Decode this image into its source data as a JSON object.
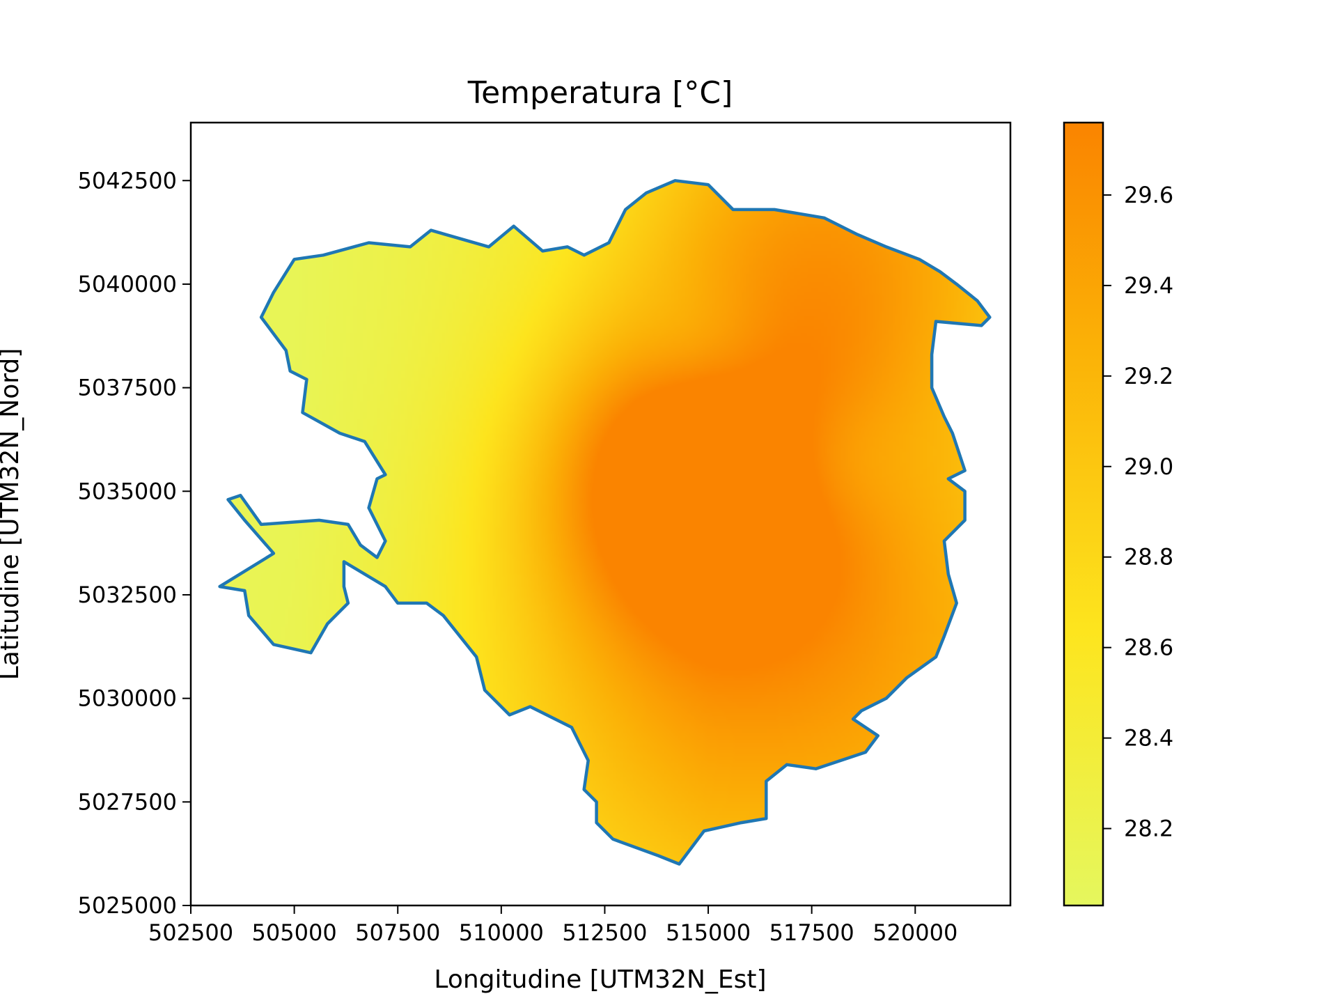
{
  "chart_data": {
    "type": "heatmap",
    "title": "Temperatura [°C]",
    "xlabel": "Longitudine [UTM32N_Est]",
    "ylabel": "Latitudine [UTM32N_Nord]",
    "xlim": [
      502500,
      522300
    ],
    "ylim": [
      5025000,
      5043900
    ],
    "x_ticks": [
      502500,
      505000,
      507500,
      510000,
      512500,
      515000,
      517500,
      520000
    ],
    "y_ticks": [
      5025000,
      5027500,
      5030000,
      5032500,
      5035000,
      5037500,
      5040000,
      5042500
    ],
    "grid": false,
    "colorbar": {
      "range": [
        28.03,
        29.76
      ],
      "ticks": [
        28.2,
        28.4,
        28.6,
        28.8,
        29.0,
        29.2,
        29.4,
        29.6
      ],
      "colors": [
        "#e5f75e",
        "#fde51e",
        "#fbb006",
        "#fa8400"
      ]
    },
    "field": {
      "base": 28.1,
      "hotspots": [
        {
          "x": 514700,
          "y": 5035300,
          "amp": 1.55,
          "radius": 2600,
          "sign": 1
        },
        {
          "x": 518000,
          "y": 5040800,
          "amp": 0.95,
          "radius": 3300,
          "sign": 1
        },
        {
          "x": 514000,
          "y": 5029800,
          "amp": 0.55,
          "radius": 4200,
          "sign": 1
        },
        {
          "x": 519500,
          "y": 5031000,
          "amp": 0.6,
          "radius": 4200,
          "sign": 1
        },
        {
          "x": 517800,
          "y": 5035700,
          "amp": 0.35,
          "radius": 1300,
          "sign": -1
        },
        {
          "x": 515000,
          "y": 5038300,
          "amp": 0.4,
          "radius": 1300,
          "sign": -1
        }
      ],
      "west_gradient": {
        "x0": 505000,
        "x1": 515000,
        "amp": 0.45
      }
    },
    "boundary": {
      "color": "#1f77b4",
      "points": [
        [
          503200,
          5032700
        ],
        [
          504500,
          5033500
        ],
        [
          503800,
          5034300
        ],
        [
          503400,
          5034800
        ],
        [
          503700,
          5034900
        ],
        [
          504200,
          5034200
        ],
        [
          505600,
          5034300
        ],
        [
          506300,
          5034200
        ],
        [
          506600,
          5033700
        ],
        [
          507000,
          5033400
        ],
        [
          507200,
          5033800
        ],
        [
          506800,
          5034600
        ],
        [
          507000,
          5035300
        ],
        [
          507200,
          5035400
        ],
        [
          506700,
          5036200
        ],
        [
          506100,
          5036400
        ],
        [
          505200,
          5036900
        ],
        [
          505300,
          5037700
        ],
        [
          504900,
          5037900
        ],
        [
          504800,
          5038400
        ],
        [
          504200,
          5039200
        ],
        [
          504500,
          5039800
        ],
        [
          505000,
          5040600
        ],
        [
          505700,
          5040700
        ],
        [
          506800,
          5041000
        ],
        [
          507800,
          5040900
        ],
        [
          508300,
          5041300
        ],
        [
          509700,
          5040900
        ],
        [
          510300,
          5041400
        ],
        [
          511000,
          5040800
        ],
        [
          511600,
          5040900
        ],
        [
          512000,
          5040700
        ],
        [
          512600,
          5041000
        ],
        [
          513000,
          5041800
        ],
        [
          513500,
          5042200
        ],
        [
          514200,
          5042500
        ],
        [
          515000,
          5042400
        ],
        [
          515600,
          5041800
        ],
        [
          516600,
          5041800
        ],
        [
          517200,
          5041700
        ],
        [
          517800,
          5041600
        ],
        [
          518600,
          5041200
        ],
        [
          519300,
          5040900
        ],
        [
          520100,
          5040600
        ],
        [
          520600,
          5040300
        ],
        [
          521000,
          5040000
        ],
        [
          521500,
          5039600
        ],
        [
          521800,
          5039200
        ],
        [
          521600,
          5039000
        ],
        [
          520500,
          5039100
        ],
        [
          520400,
          5038300
        ],
        [
          520400,
          5037500
        ],
        [
          520700,
          5036800
        ],
        [
          520900,
          5036400
        ],
        [
          521200,
          5035500
        ],
        [
          520800,
          5035300
        ],
        [
          521200,
          5035000
        ],
        [
          521200,
          5034300
        ],
        [
          520700,
          5033800
        ],
        [
          520800,
          5033000
        ],
        [
          521000,
          5032300
        ],
        [
          520700,
          5031500
        ],
        [
          520500,
          5031000
        ],
        [
          519800,
          5030500
        ],
        [
          519300,
          5030000
        ],
        [
          518700,
          5029700
        ],
        [
          518500,
          5029500
        ],
        [
          519100,
          5029100
        ],
        [
          518800,
          5028700
        ],
        [
          517600,
          5028300
        ],
        [
          516900,
          5028400
        ],
        [
          516400,
          5028000
        ],
        [
          516400,
          5027100
        ],
        [
          515800,
          5027000
        ],
        [
          514900,
          5026800
        ],
        [
          514300,
          5026000
        ],
        [
          513800,
          5026200
        ],
        [
          512700,
          5026600
        ],
        [
          512300,
          5027000
        ],
        [
          512300,
          5027500
        ],
        [
          512000,
          5027800
        ],
        [
          512100,
          5028500
        ],
        [
          511700,
          5029300
        ],
        [
          510700,
          5029800
        ],
        [
          510200,
          5029600
        ],
        [
          509600,
          5030200
        ],
        [
          509400,
          5031000
        ],
        [
          508600,
          5032000
        ],
        [
          508200,
          5032300
        ],
        [
          507500,
          5032300
        ],
        [
          507200,
          5032700
        ],
        [
          506200,
          5033300
        ],
        [
          506200,
          5032700
        ],
        [
          506300,
          5032300
        ],
        [
          505800,
          5031800
        ],
        [
          505400,
          5031100
        ],
        [
          504500,
          5031300
        ],
        [
          503900,
          5032000
        ],
        [
          503800,
          5032600
        ]
      ]
    }
  }
}
